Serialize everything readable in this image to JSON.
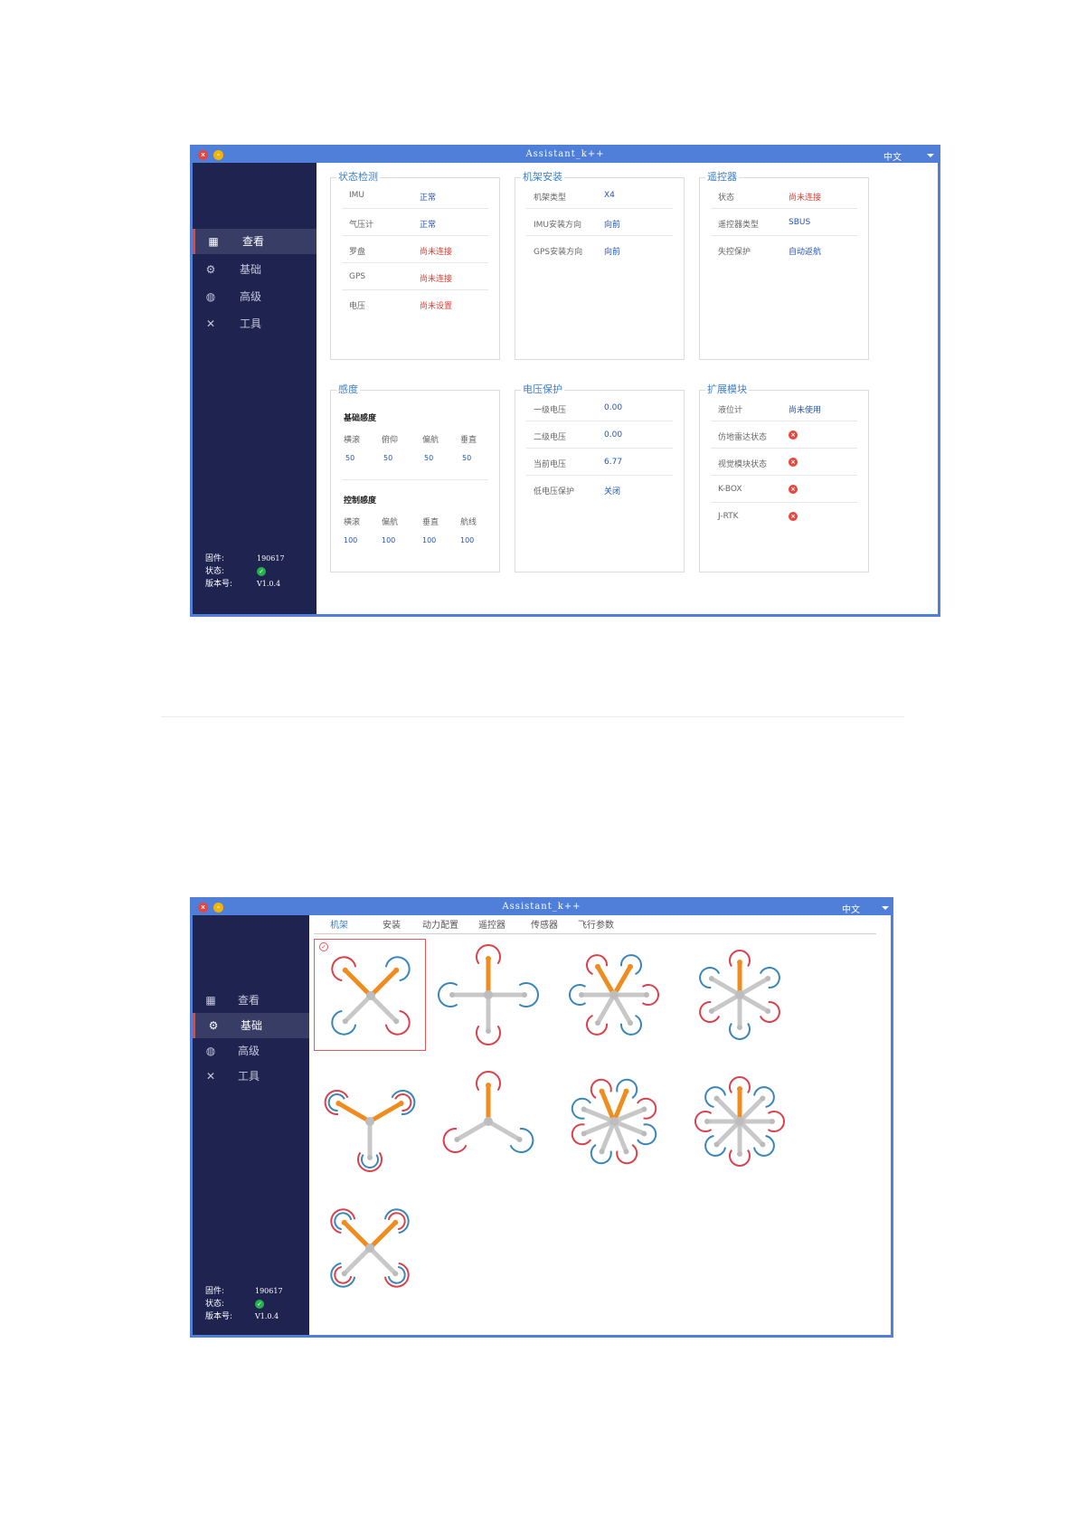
{
  "colors": {
    "title_bar": "#4f7fd8",
    "sidebar": "#1f2350",
    "accent_blue": "#3f7fc8",
    "error_red": "#e33b30",
    "ok_green": "#26b24a",
    "frame_orange": "#f08c1e"
  },
  "window1": {
    "title": "Assistant_k++",
    "lang": "中文",
    "nav": [
      {
        "label": "查看",
        "icon": "grid-icon",
        "glyph": "▦"
      },
      {
        "label": "基础",
        "icon": "gear-icon",
        "glyph": "⚙"
      },
      {
        "label": "高级",
        "icon": "globe-icon",
        "glyph": "◍"
      },
      {
        "label": "工具",
        "icon": "tools-icon",
        "glyph": "✕"
      }
    ],
    "firmware": {
      "fw_label": "固件:",
      "fw_value": "190617",
      "status_label": "状态:",
      "version_label": "版本号:",
      "version_value": "V1.0.4"
    },
    "panels": {
      "status": {
        "title": "状态检测",
        "rows": [
          {
            "k": "IMU",
            "v": "正常",
            "c": "blue"
          },
          {
            "k": "气压计",
            "v": "正常",
            "c": "blue"
          },
          {
            "k": "罗盘",
            "v": "尚未连接",
            "c": "red"
          },
          {
            "k": "GPS",
            "v": "尚未连接",
            "c": "red"
          },
          {
            "k": "电压",
            "v": "尚未设置",
            "c": "red"
          }
        ]
      },
      "frame": {
        "title": "机架安装",
        "rows": [
          {
            "k": "机架类型",
            "v": "X4",
            "c": "blue"
          },
          {
            "k": "IMU安装方向",
            "v": "向前",
            "c": "blue"
          },
          {
            "k": "GPS安装方向",
            "v": "向前",
            "c": "blue"
          }
        ]
      },
      "rc": {
        "title": "遥控器",
        "rows": [
          {
            "k": "状态",
            "v": "尚未连接",
            "c": "red"
          },
          {
            "k": "遥控器类型",
            "v": "SBUS",
            "c": "blue"
          },
          {
            "k": "失控保护",
            "v": "自动返航",
            "c": "blue"
          }
        ]
      },
      "sensitivity": {
        "title": "感度",
        "basic_title": "基础感度",
        "basic_labels": [
          "横滚",
          "俯仰",
          "偏航",
          "垂直"
        ],
        "basic_values": [
          "50",
          "50",
          "50",
          "50"
        ],
        "control_title": "控制感度",
        "control_labels": [
          "横滚",
          "偏航",
          "垂直",
          "航线"
        ],
        "control_values": [
          "100",
          "100",
          "100",
          "100"
        ]
      },
      "voltage": {
        "title": "电压保护",
        "rows": [
          {
            "k": "一级电压",
            "v": "0.00",
            "c": "blue"
          },
          {
            "k": "二级电压",
            "v": "0.00",
            "c": "blue"
          },
          {
            "k": "当前电压",
            "v": "6.77",
            "c": "blue"
          },
          {
            "k": "低电压保护",
            "v": "关闭",
            "c": "blue"
          }
        ]
      },
      "ext": {
        "title": "扩展模块",
        "rows": [
          {
            "k": "液位计",
            "v": "尚未使用",
            "c": "blue"
          },
          {
            "k": "仿地雷达状态",
            "v": "",
            "c": "x"
          },
          {
            "k": "视觉模块状态",
            "v": "",
            "c": "x"
          },
          {
            "k": "K-BOX",
            "v": "",
            "c": "x"
          },
          {
            "k": "J-RTK",
            "v": "",
            "c": "x"
          }
        ]
      }
    }
  },
  "window2": {
    "title": "Assistant_k++",
    "lang": "中文",
    "tabs": [
      "机架",
      "安装",
      "动力配置",
      "遥控器",
      "传感器",
      "飞行参数"
    ],
    "frames": [
      {
        "name": "frame-quad-x",
        "selected": true
      },
      {
        "name": "frame-quad-plus",
        "selected": false
      },
      {
        "name": "frame-hex-x",
        "selected": false
      },
      {
        "name": "frame-hex-plus",
        "selected": false
      },
      {
        "name": "frame-y6",
        "selected": false
      },
      {
        "name": "frame-tri",
        "selected": false
      },
      {
        "name": "frame-octo-x",
        "selected": false
      },
      {
        "name": "frame-octo-plus",
        "selected": false
      },
      {
        "name": "frame-x8",
        "selected": false
      }
    ]
  }
}
